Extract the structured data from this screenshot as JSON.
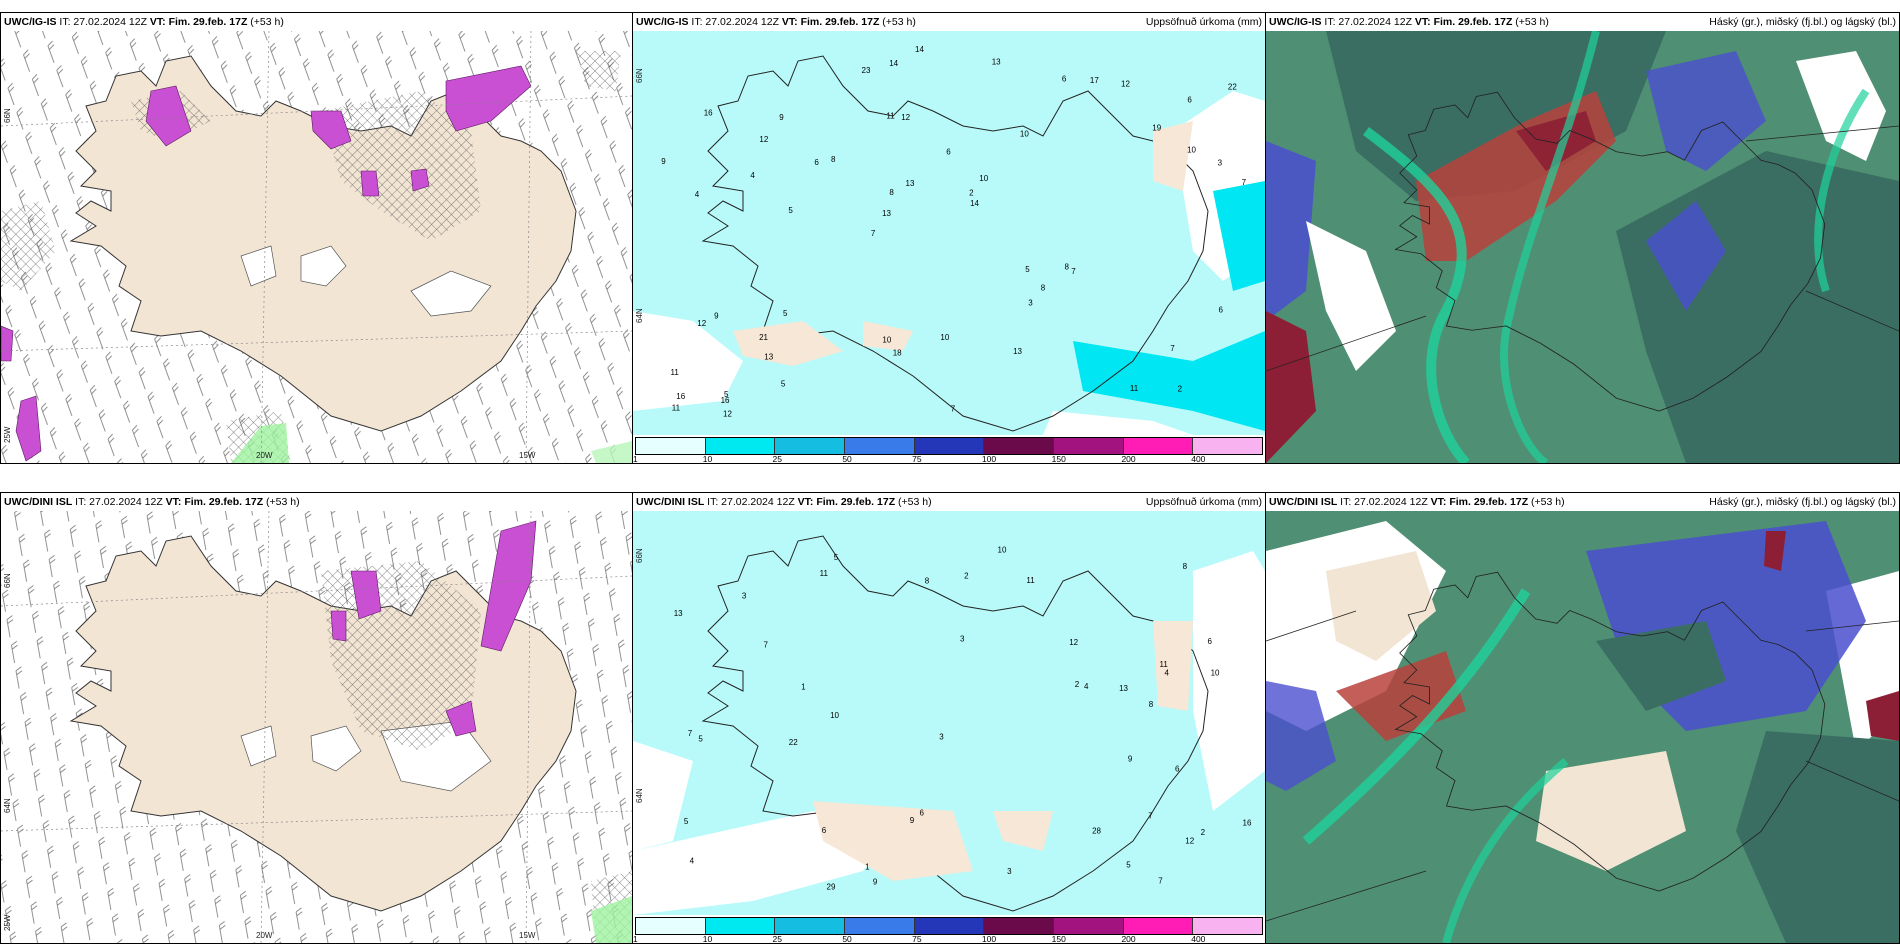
{
  "colors": {
    "land": "#f2e5d3",
    "sea_precip_light": "#b8fafa",
    "sea_precip_cyan": "#00e6f2",
    "snow_purple": "#c94fd3",
    "dark_teal": "#3b6e62",
    "mid_green": "#4f8f73",
    "bright_green": "#1ed19b",
    "blue": "#4a4fcf",
    "red": "#b8423c",
    "maroon": "#8c1f35"
  },
  "rows": [
    {
      "panels": [
        {
          "source": "UWC/IG-IS",
          "it_label": "IT: 27.02.2024 12Z",
          "vt_label": "VT: Fim. 29.feb. 17Z",
          "lead": "(+53 h)",
          "right_title": ""
        },
        {
          "source": "UWC/IG-IS",
          "it_label": "IT: 27.02.2024 12Z",
          "vt_label": "VT: Fim. 29.feb. 17Z",
          "lead": "(+53 h)",
          "right_title": "Uppsöfnuð úrkoma (mm)"
        },
        {
          "source": "UWC/IG-IS",
          "it_label": "IT: 27.02.2024 12Z",
          "vt_label": "VT: Fim. 29.feb. 17Z",
          "lead": "(+53 h)",
          "right_title": "Háský (gr.), miðský (fj.bl.) og lágský (bl.)"
        }
      ]
    },
    {
      "panels": [
        {
          "source": "UWC/DINI ISL",
          "it_label": "IT: 27.02.2024 12Z",
          "vt_label": "VT: Fim. 29.feb. 17Z",
          "lead": "(+53 h)",
          "right_title": ""
        },
        {
          "source": "UWC/DINI ISL",
          "it_label": "IT: 27.02.2024 12Z",
          "vt_label": "VT: Fim. 29.feb. 17Z",
          "lead": "(+53 h)",
          "right_title": "Uppsöfnuð úrkoma (mm)"
        },
        {
          "source": "UWC/DINI ISL",
          "it_label": "IT: 27.02.2024 12Z",
          "vt_label": "VT: Fim. 29.feb. 17Z",
          "lead": "(+53 h)",
          "right_title": "Háský (gr.), miðský (fj.bl.) og lágský (bl.)"
        }
      ]
    }
  ],
  "coords": {
    "lat_66": "66N",
    "lat_64": "64N",
    "lon_25": "25W",
    "lon_20": "20W",
    "lon_15": "15W"
  },
  "legend": {
    "ticks": [
      "1",
      "10",
      "25",
      "50",
      "75",
      "100",
      "150",
      "200",
      "400"
    ],
    "colors": [
      "#e6ffff",
      "#00e8f0",
      "#15bde0",
      "#3a7bea",
      "#2337b8",
      "#6a0a4a",
      "#a3137f",
      "#ff1db5",
      "#f7b2ef"
    ]
  },
  "top_precip_numbers": [
    "2",
    "4",
    "6",
    "7",
    "10",
    "5",
    "11",
    "6",
    "9",
    "8",
    "11",
    "13",
    "12",
    "10",
    "7",
    "16",
    "14",
    "7",
    "5",
    "10",
    "13",
    "10",
    "8",
    "9",
    "6",
    "5",
    "11",
    "7",
    "8",
    "7",
    "6",
    "4",
    "3",
    "5",
    "3",
    "2",
    "16",
    "18",
    "14",
    "12",
    "19",
    "22",
    "8",
    "13",
    "21",
    "12",
    "11",
    "10",
    "12",
    "14",
    "5",
    "9",
    "12",
    "17",
    "16",
    "13",
    "23",
    "13",
    "6"
  ],
  "bottom_precip_numbers": [
    "7",
    "6",
    "2",
    "3",
    "4",
    "5",
    "11",
    "6",
    "8",
    "7",
    "10",
    "13",
    "8",
    "9",
    "5",
    "3",
    "12",
    "11",
    "6",
    "4",
    "7",
    "5",
    "3",
    "2",
    "1",
    "9",
    "10",
    "11",
    "12",
    "16",
    "22",
    "28",
    "29",
    "3",
    "6",
    "5",
    "4",
    "8",
    "7",
    "10",
    "9",
    "13",
    "2",
    "1"
  ]
}
